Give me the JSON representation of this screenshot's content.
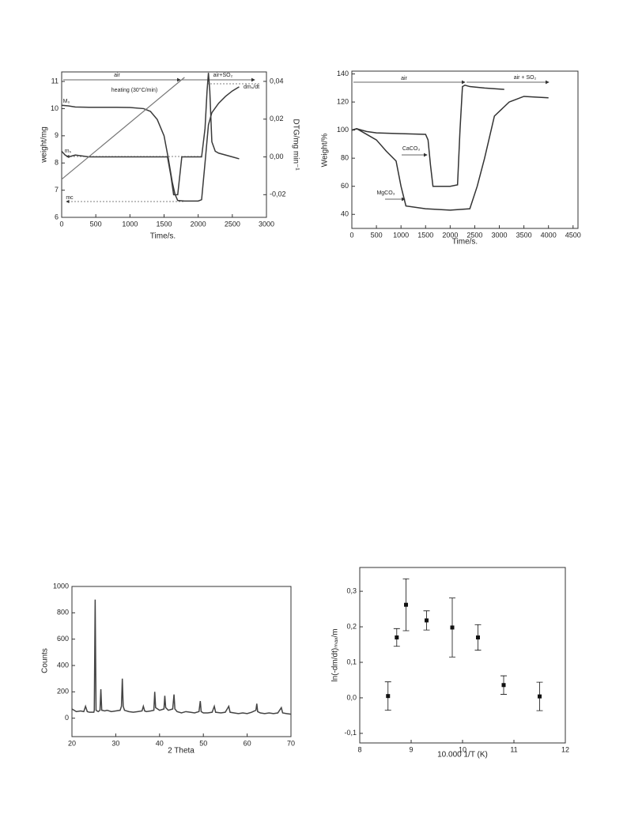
{
  "chart_data": [
    {
      "type": "line",
      "xlabel": "Time/s.",
      "ylabel": "weight/mg",
      "y2label": "DTG/mg min⁻¹",
      "annotations": [
        "air",
        "air+SO₂",
        "heating (30°C/min)",
        "M₀",
        "mₛ",
        "mc",
        "dmₛ/dt"
      ],
      "xlim": [
        0,
        3000
      ],
      "xticks": [
        0,
        500,
        1000,
        1500,
        2000,
        2500,
        3000
      ],
      "ylim": [
        6,
        11.35
      ],
      "yticks": [
        6,
        7,
        8,
        9,
        10,
        11
      ],
      "y2lim": [
        -0.032,
        0.045
      ],
      "y2ticks": [
        {
          "value": -0.02,
          "label": "-0,02"
        },
        {
          "value": 0,
          "label": "0,00"
        },
        {
          "value": 0.02,
          "label": "0,02"
        },
        {
          "value": 0.04,
          "label": "0,04"
        }
      ],
      "series": [
        {
          "color": "#3a3a3a",
          "x": [
            0,
            100,
            200,
            400,
            600,
            800,
            1000,
            1200,
            1300,
            1400,
            1500,
            1560,
            1620,
            1660,
            1700,
            1800,
            1900,
            2000,
            2050,
            2100,
            2150,
            2200,
            2300,
            2400,
            2500,
            2600
          ],
          "values": [
            10.12,
            10.1,
            10.06,
            10.05,
            10.05,
            10.05,
            10.04,
            10.0,
            9.9,
            9.6,
            9.0,
            8.2,
            7.3,
            6.85,
            6.62,
            6.6,
            6.6,
            6.6,
            6.65,
            8.0,
            9.4,
            9.85,
            10.2,
            10.45,
            10.65,
            10.8
          ]
        },
        {
          "color": "#3a3a3a",
          "axis": "y2",
          "x": [
            0,
            50,
            100,
            200,
            400,
            600,
            800,
            1000,
            1200,
            1400,
            1500,
            1550,
            1600,
            1640,
            1700,
            1730,
            1760,
            1800,
            1900,
            2000,
            2050,
            2100,
            2130,
            2150,
            2170,
            2200,
            2250,
            2300,
            2400,
            2500,
            2600
          ],
          "values": [
            0.003,
            0.001,
            0,
            0.001,
            0,
            0,
            0,
            0,
            0,
            0,
            0,
            0,
            -0.01,
            -0.02,
            -0.02,
            -0.01,
            0,
            0,
            0,
            0,
            0,
            0.015,
            0.035,
            0.0445,
            0.035,
            0.008,
            0.003,
            0.002,
            0.001,
            0,
            -0.001
          ]
        },
        {
          "color": "#777777",
          "x": [
            0,
            1800
          ],
          "values": [
            7.4,
            11.15
          ]
        }
      ]
    },
    {
      "type": "line",
      "xlabel": "Time/s.",
      "ylabel": "Weight/%",
      "annotations": [
        "air",
        "air + SO₂",
        "CaCO₃",
        "MgCO₃"
      ],
      "xlim": [
        0,
        4600
      ],
      "xticks": [
        0,
        500,
        1000,
        1500,
        2000,
        2500,
        3000,
        3500,
        4000,
        4500
      ],
      "ylim": [
        30,
        142
      ],
      "yticks": [
        40,
        60,
        80,
        100,
        120,
        140
      ],
      "series": [
        {
          "color": "#333333",
          "x": [
            0,
            100,
            300,
            500,
            1000,
            1500,
            1550,
            1600,
            1650,
            1800,
            2000,
            2150,
            2200,
            2250,
            2300,
            2400,
            2700,
            3100
          ],
          "values": [
            100,
            101,
            99,
            98,
            97.5,
            97,
            93,
            75,
            60,
            60,
            60,
            61,
            100,
            131,
            132,
            131,
            130,
            129
          ]
        },
        {
          "color": "#333333",
          "x": [
            0,
            100,
            300,
            500,
            700,
            900,
            1000,
            1100,
            1500,
            2000,
            2400,
            2550,
            2700,
            2900,
            3200,
            3500,
            4000
          ],
          "values": [
            100,
            101,
            97,
            93,
            85,
            78,
            60,
            46,
            44,
            43,
            44,
            60,
            80,
            110,
            120,
            124,
            123
          ]
        }
      ]
    },
    {
      "type": "line",
      "xlabel": "2 Theta",
      "ylabel": "Counts",
      "xlim": [
        20,
        70
      ],
      "xticks": [
        20,
        30,
        40,
        50,
        60,
        70
      ],
      "ylim": [
        -140,
        1000
      ],
      "yticks": [
        0,
        200,
        400,
        600,
        800,
        1000
      ],
      "series": [
        {
          "color": "#444444",
          "x": [
            20,
            21,
            22,
            22.7,
            23.1,
            23.5,
            24,
            25,
            25.1,
            25.3,
            25.5,
            26,
            26.4,
            26.6,
            26.8,
            27.5,
            28,
            29,
            30,
            31,
            31.3,
            31.5,
            31.7,
            32,
            33,
            34,
            35,
            36,
            36.3,
            36.6,
            37,
            38,
            38.7,
            38.9,
            39.1,
            40,
            41,
            41.2,
            41.4,
            42,
            43,
            43.3,
            43.5,
            44,
            45,
            46,
            47,
            48,
            49,
            49.3,
            49.5,
            50,
            51,
            52,
            52.5,
            52.8,
            54,
            55,
            55.8,
            56.1,
            57,
            58,
            59,
            60,
            61,
            62,
            62.2,
            62.4,
            63,
            64,
            65,
            66,
            67,
            67.8,
            68.1,
            69,
            70
          ],
          "values": [
            70,
            50,
            55,
            50,
            90,
            50,
            45,
            45,
            60,
            900,
            60,
            50,
            60,
            220,
            60,
            55,
            60,
            50,
            55,
            60,
            90,
            300,
            90,
            60,
            50,
            45,
            50,
            55,
            90,
            55,
            50,
            55,
            60,
            200,
            80,
            60,
            70,
            170,
            80,
            60,
            70,
            180,
            70,
            50,
            40,
            50,
            45,
            40,
            50,
            130,
            50,
            40,
            40,
            45,
            90,
            45,
            40,
            45,
            90,
            45,
            40,
            35,
            40,
            35,
            45,
            60,
            110,
            50,
            40,
            35,
            40,
            35,
            40,
            80,
            40,
            35,
            30
          ]
        }
      ]
    },
    {
      "type": "scatter",
      "xlabel": "10.000 1/T (K)",
      "ylabel": "ln(-dm/dt)ₘₐₓ/m",
      "xlim": [
        8,
        12
      ],
      "xticks": [
        8,
        9,
        10,
        11,
        12
      ],
      "ylim": [
        -0.127,
        0.367
      ],
      "yticks": [
        {
          "value": -0.1,
          "label": "-0,1"
        },
        {
          "value": 0,
          "label": "0,0"
        },
        {
          "value": 0.1,
          "label": "0,1"
        },
        {
          "value": 0.2,
          "label": "0,2"
        },
        {
          "value": 0.3,
          "label": "0,3"
        }
      ],
      "series": [
        {
          "color": "#111111",
          "x": [
            8.55,
            8.72,
            8.9,
            9.3,
            9.8,
            10.3,
            10.8,
            11.5
          ],
          "values": [
            0.005,
            0.17,
            0.262,
            0.218,
            0.198,
            0.17,
            0.036,
            0.004
          ],
          "errors": [
            0.04,
            0.025,
            0.073,
            0.027,
            0.083,
            0.036,
            0.026,
            0.04
          ]
        }
      ]
    }
  ]
}
